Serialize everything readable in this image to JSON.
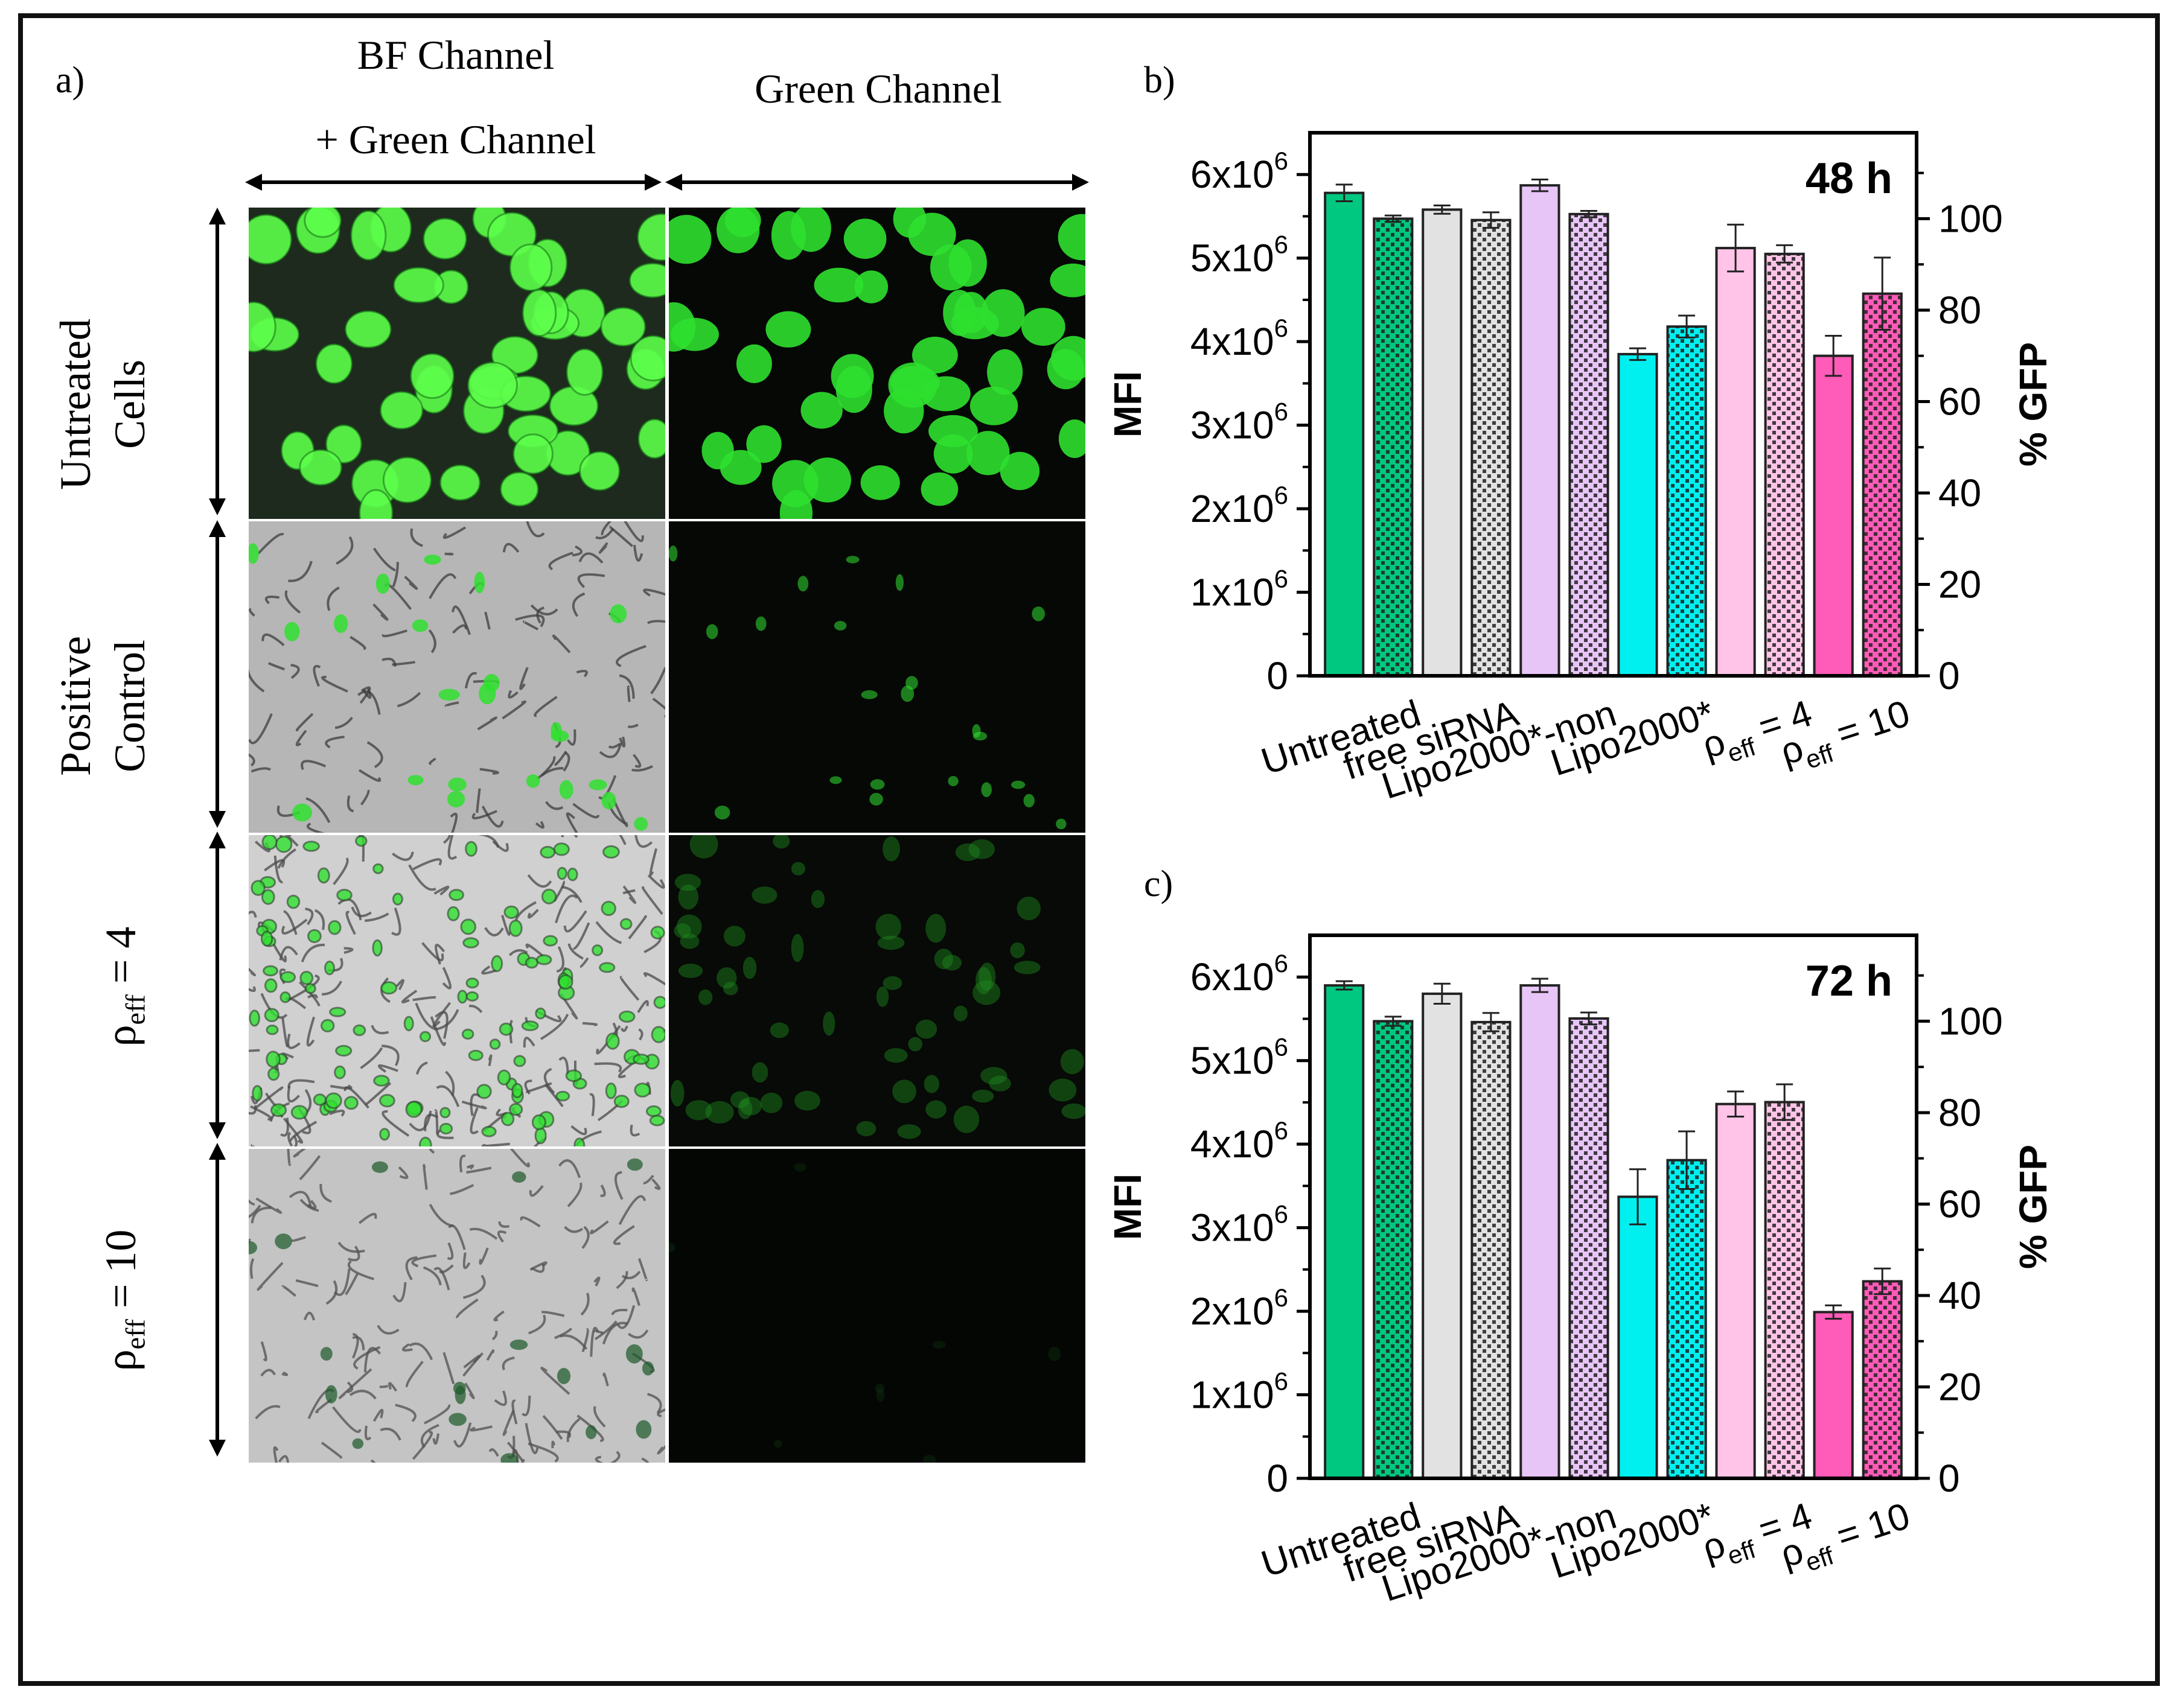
{
  "panel_a": {
    "letter": "a)",
    "column_headers": {
      "left_line1": "BF Channel",
      "left_line2": "+ Green Channel",
      "right": "Green Channel"
    },
    "rows": [
      {
        "line1": "Untreated",
        "line2": "Cells",
        "kind": "two-line"
      },
      {
        "line1": "Positive",
        "line2": "Control",
        "kind": "two-line"
      },
      {
        "rho": "ρ",
        "sub": "eff",
        "rest": " = 4",
        "kind": "rho"
      },
      {
        "rho": "ρ",
        "sub": "eff",
        "rest": " = 10",
        "kind": "rho"
      }
    ],
    "tile_colors": {
      "green": "#2fe02f",
      "bright_green": "#5dff4a",
      "dark": "#050805",
      "gray": "#b9b9b9"
    }
  },
  "chart_data": [
    {
      "panel_letter": "b)",
      "type": "bar",
      "title": "48 h",
      "ylabel": "MFI",
      "y2label": "% GFP",
      "ylim": [
        0,
        6500000
      ],
      "y_ticks": [
        0,
        1000000,
        2000000,
        3000000,
        4000000,
        5000000,
        6000000
      ],
      "y_tick_labels": [
        "0",
        "1x10",
        "2x10",
        "3x10",
        "4x10",
        "5x10",
        "6x10"
      ],
      "y_tick_exponent": "6",
      "y2lim": [
        0,
        118.8
      ],
      "y2_ticks": [
        0,
        20,
        40,
        60,
        80,
        100
      ],
      "categories": [
        "Untreated",
        "free siRNA",
        "Lipo2000*-non",
        "Lipo2000*",
        "ρ_eff = 4",
        "ρ_eff = 10"
      ],
      "bars": [
        {
          "axis": "MFI",
          "value": 5780000,
          "err": 100000,
          "color": "#00c880",
          "hatched": false
        },
        {
          "axis": "GFP",
          "value": 100.0,
          "err": 0.7,
          "color": "#00c880",
          "hatched": true
        },
        {
          "axis": "MFI",
          "value": 5580000,
          "err": 50000,
          "color": "#e2e2e2",
          "hatched": false
        },
        {
          "axis": "GFP",
          "value": 99.7,
          "err": 1.7,
          "color": "#e2e2e2",
          "hatched": true
        },
        {
          "axis": "MFI",
          "value": 5870000,
          "err": 70000,
          "color": "#e8c5f7",
          "hatched": false
        },
        {
          "axis": "GFP",
          "value": 101.0,
          "err": 0.7,
          "color": "#e8c5f7",
          "hatched": true
        },
        {
          "axis": "MFI",
          "value": 3850000,
          "err": 70000,
          "color": "#00f0f0",
          "hatched": false
        },
        {
          "axis": "GFP",
          "value": 76.4,
          "err": 2.4,
          "color": "#00f0f0",
          "hatched": true
        },
        {
          "axis": "MFI",
          "value": 5120000,
          "err": 280000,
          "color": "#ffc4e8",
          "hatched": false
        },
        {
          "axis": "GFP",
          "value": 92.3,
          "err": 1.9,
          "color": "#ffc4e8",
          "hatched": true
        },
        {
          "axis": "MFI",
          "value": 3830000,
          "err": 240000,
          "color": "#ff5bb8",
          "hatched": false
        },
        {
          "axis": "GFP",
          "value": 83.6,
          "err": 7.9,
          "color": "#ff5bb8",
          "hatched": true
        }
      ]
    },
    {
      "panel_letter": "c)",
      "type": "bar",
      "title": "72 h",
      "ylabel": "MFI",
      "y2label": "% GFP",
      "ylim": [
        0,
        6500000
      ],
      "y_ticks": [
        0,
        1000000,
        2000000,
        3000000,
        4000000,
        5000000,
        6000000
      ],
      "y_tick_labels": [
        "0",
        "1x10",
        "2x10",
        "3x10",
        "4x10",
        "5x10",
        "6x10"
      ],
      "y_tick_exponent": "6",
      "y2lim": [
        0,
        118.8
      ],
      "y2_ticks": [
        0,
        20,
        40,
        60,
        80,
        100
      ],
      "categories": [
        "Untreated",
        "free siRNA",
        "Lipo2000*-non",
        "Lipo2000*",
        "ρ_eff = 4",
        "ρ_eff = 10"
      ],
      "bars": [
        {
          "axis": "MFI",
          "value": 5900000,
          "err": 50000,
          "color": "#00c880",
          "hatched": false
        },
        {
          "axis": "GFP",
          "value": 100.0,
          "err": 1.0,
          "color": "#00c880",
          "hatched": true
        },
        {
          "axis": "MFI",
          "value": 5800000,
          "err": 120000,
          "color": "#e2e2e2",
          "hatched": false
        },
        {
          "axis": "GFP",
          "value": 99.8,
          "err": 2.0,
          "color": "#e2e2e2",
          "hatched": true
        },
        {
          "axis": "MFI",
          "value": 5900000,
          "err": 80000,
          "color": "#e8c5f7",
          "hatched": false
        },
        {
          "axis": "GFP",
          "value": 100.6,
          "err": 1.3,
          "color": "#e8c5f7",
          "hatched": true
        },
        {
          "axis": "MFI",
          "value": 3370000,
          "err": 330000,
          "color": "#00f0f0",
          "hatched": false
        },
        {
          "axis": "GFP",
          "value": 69.6,
          "err": 6.3,
          "color": "#00f0f0",
          "hatched": true
        },
        {
          "axis": "MFI",
          "value": 4480000,
          "err": 150000,
          "color": "#ffc4e8",
          "hatched": false
        },
        {
          "axis": "GFP",
          "value": 82.3,
          "err": 3.9,
          "color": "#ffc4e8",
          "hatched": true
        },
        {
          "axis": "MFI",
          "value": 1990000,
          "err": 80000,
          "color": "#ff5bb8",
          "hatched": false
        },
        {
          "axis": "GFP",
          "value": 43.1,
          "err": 2.8,
          "color": "#ff5bb8",
          "hatched": true
        }
      ]
    }
  ]
}
